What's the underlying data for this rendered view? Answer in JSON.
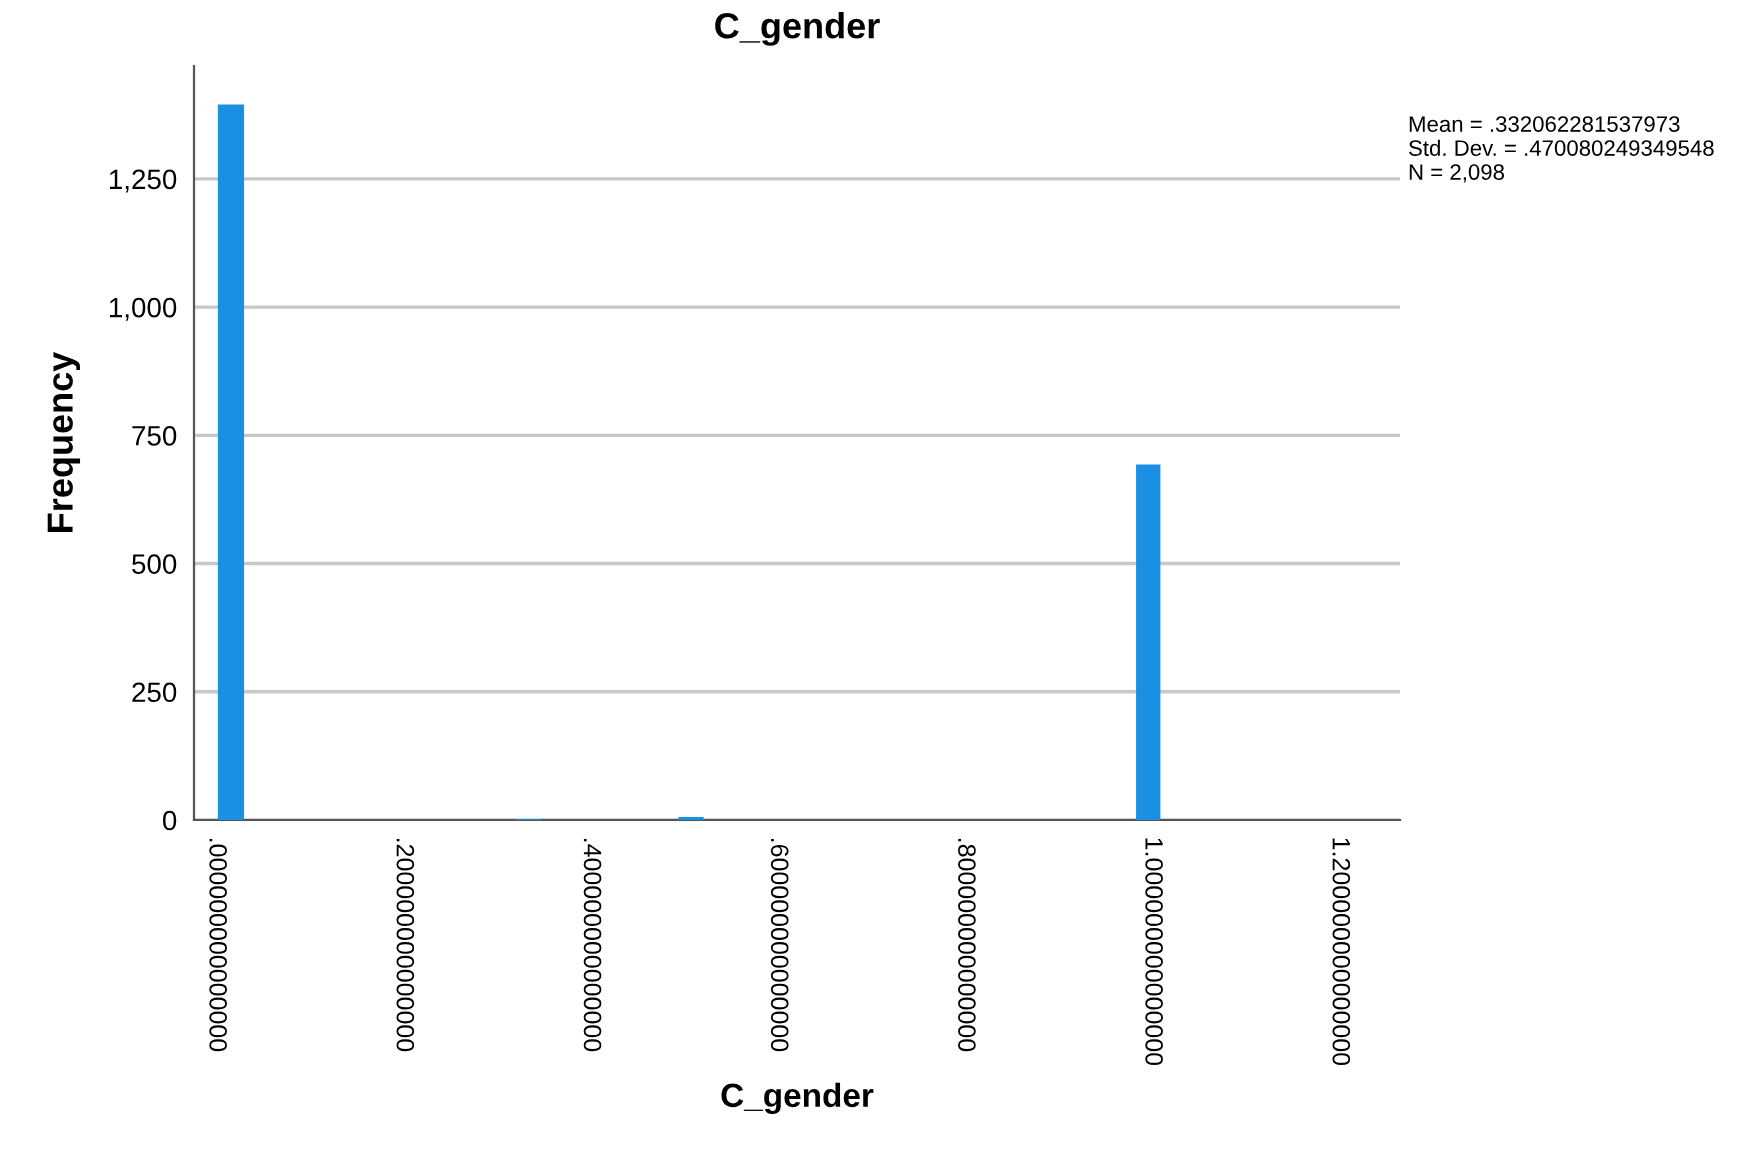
{
  "chart_data": {
    "type": "histogram",
    "title": "C_gender",
    "xlabel": "C_gender",
    "ylabel": "Frequency",
    "bins": [
      0.002,
      0.03,
      0.32,
      0.347,
      0.494,
      0.521,
      0.983,
      1.009
    ],
    "values": [
      1395,
      0,
      2,
      0,
      6,
      0,
      693
    ],
    "color": "#1a8fe3",
    "xlim": [
      -0.0235,
      1.265
    ],
    "xticks": [
      {
        "value": 0,
        "label": ".000000000000000"
      },
      {
        "value": 0.2,
        "label": ".200000000000000"
      },
      {
        "value": 0.4,
        "label": ".400000000000000"
      },
      {
        "value": 0.6,
        "label": ".600000000000000"
      },
      {
        "value": 0.8,
        "label": ".800000000000000"
      },
      {
        "value": 1.0,
        "label": "1.000000000000000"
      },
      {
        "value": 1.2,
        "label": "1.200000000000000"
      }
    ],
    "ylim": [
      0,
      1470
    ],
    "yticks": [
      0,
      250,
      500,
      750,
      {
        "value": 1000,
        "label": "1,000"
      },
      {
        "value": 1250,
        "label": "1,250"
      }
    ],
    "grid": "y",
    "legend": false,
    "annotations": [
      "Mean = .332062281537973",
      "Std. Dev. = .470080249349548",
      "N = 2,098"
    ]
  }
}
